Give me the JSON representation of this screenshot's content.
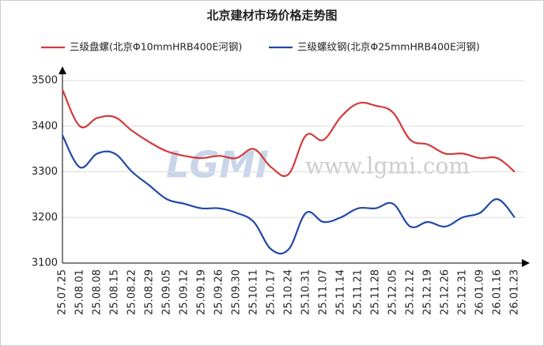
{
  "chart_data": {
    "type": "line",
    "title": "北京建材市场价格走势图",
    "watermark": [
      "LGMI",
      "www.lgmi.com"
    ],
    "categories": [
      "25.07.25",
      "25.08.01",
      "25.08.08",
      "25.08.15",
      "25.08.22",
      "25.08.29",
      "25.09.05",
      "25.09.12",
      "25.09.19",
      "25.09.26",
      "25.09.30",
      "25.10.11",
      "25.10.17",
      "25.10.24",
      "25.10.31",
      "25.11.07",
      "25.11.14",
      "25.11.21",
      "25.11.28",
      "25.12.05",
      "25.12.12",
      "25.12.19",
      "25.12.26",
      "25.12.31",
      "26.01.09",
      "26.01.16",
      "26.01.23"
    ],
    "series": [
      {
        "name": "三级盘螺(北京Φ10mmHRB400E河钢)",
        "color": "#d23a3a",
        "values": [
          3480,
          3400,
          3418,
          3420,
          3390,
          3365,
          3345,
          3335,
          3330,
          3335,
          3330,
          3350,
          3310,
          3295,
          3380,
          3370,
          3420,
          3450,
          3445,
          3430,
          3370,
          3360,
          3340,
          3340,
          3330,
          3330,
          3300
        ]
      },
      {
        "name": "三级螺纹钢(北京Φ25mmHRB400E河钢)",
        "color": "#2148a8",
        "values": [
          3380,
          3310,
          3340,
          3340,
          3300,
          3270,
          3240,
          3230,
          3220,
          3220,
          3210,
          3190,
          3130,
          3130,
          3210,
          3190,
          3200,
          3220,
          3220,
          3230,
          3180,
          3190,
          3180,
          3200,
          3210,
          3240,
          3200
        ]
      }
    ],
    "ylim": [
      3100,
      3500
    ],
    "yticks": [
      3100,
      3200,
      3300,
      3400,
      3500
    ],
    "grid": true
  }
}
